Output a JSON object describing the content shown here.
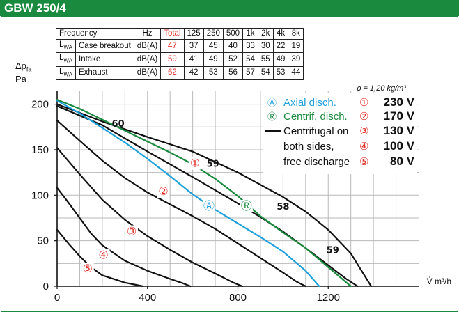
{
  "title": "GBW 250/4",
  "table": {
    "head": [
      "Frequency",
      "Hz",
      "Total",
      "125",
      "250",
      "500",
      "1k",
      "2k",
      "4k",
      "8k"
    ],
    "rows": [
      {
        "sym": "L",
        "sub": "WA",
        "label": "Case breakout",
        "unit": "dB(A)",
        "total": "47",
        "vals": [
          "37",
          "45",
          "40",
          "33",
          "30",
          "22",
          "19"
        ]
      },
      {
        "sym": "L",
        "sub": "WA",
        "label": "Intake",
        "unit": "dB(A)",
        "total": "59",
        "vals": [
          "41",
          "49",
          "52",
          "54",
          "55",
          "49",
          "39"
        ]
      },
      {
        "sym": "L",
        "sub": "WA",
        "label": "Exhaust",
        "unit": "dB(A)",
        "total": "62",
        "vals": [
          "42",
          "53",
          "56",
          "57",
          "54",
          "53",
          "44"
        ]
      }
    ]
  },
  "ylabel_sym": "Δp",
  "ylabel_sub": "fa",
  "ylabel_unit": "Pa",
  "xlabel": "V̇ m³/h",
  "rho": "ρ = 1,20 kg/m³",
  "legend": {
    "lines": [
      {
        "mark": "Ⓐ",
        "text": "Axial disch.",
        "color": "#1ea0dc"
      },
      {
        "mark": "Ⓡ",
        "text": "Centrif. disch.",
        "color": "#1a8a3e"
      },
      {
        "mark": "—",
        "text": "Centrifugal on",
        "color": "#111111"
      },
      {
        "mark": "",
        "text": "both sides,",
        "color": "#111111"
      },
      {
        "mark": "",
        "text": "free discharge",
        "color": "#111111"
      }
    ],
    "speeds": [
      {
        "mark": "①",
        "value": "230 V"
      },
      {
        "mark": "②",
        "value": "170 V"
      },
      {
        "mark": "③",
        "value": "130 V"
      },
      {
        "mark": "④",
        "value": "100 V"
      },
      {
        "mark": "⑤",
        "value": "80 V"
      }
    ]
  },
  "colors": {
    "axial": "#1ea0dc",
    "centrif": "#1a8a3e",
    "free": "#111111",
    "marker": "#e0312b",
    "frame": "#1a8a3e"
  },
  "chart_data": {
    "type": "line",
    "xlim": [
      0,
      1600
    ],
    "ylim": [
      0,
      215
    ],
    "xticks": [
      0,
      400,
      800,
      1200
    ],
    "yticks": [
      0,
      50,
      100,
      150,
      200
    ],
    "grid": true,
    "series": [
      {
        "name": "Centrifugal on both sides, free discharge",
        "color": "#111111",
        "x": [
          0,
          200,
          400,
          600,
          800,
          1000,
          1100,
          1200,
          1300,
          1340,
          1390
        ],
        "y": [
          200,
          181,
          164,
          148,
          125,
          98,
          82,
          62,
          36,
          20,
          0
        ]
      },
      {
        "name": "Centrifugal on both sides, free discharge",
        "color": "#111111",
        "x": [
          0,
          200,
          400,
          600,
          800,
          900,
          1000,
          1100,
          1200,
          1280,
          1330
        ],
        "y": [
          198,
          177,
          148,
          120,
          91,
          76,
          60,
          42,
          23,
          8,
          0
        ]
      },
      {
        "name": "Centrifugal on both sides, free discharge",
        "color": "#111111",
        "x": [
          0,
          100,
          200,
          300,
          400,
          500,
          600,
          700,
          800,
          900,
          1000,
          1060,
          1100
        ],
        "y": [
          182,
          160,
          138,
          119,
          103,
          90,
          77,
          63,
          47,
          31,
          15,
          5,
          0
        ]
      },
      {
        "name": "Centrifugal on both sides, free discharge",
        "color": "#111111",
        "x": [
          0,
          100,
          200,
          300,
          400,
          500,
          600,
          700,
          780,
          820
        ],
        "y": [
          152,
          123,
          95,
          73,
          55,
          40,
          26,
          14,
          4,
          0
        ]
      },
      {
        "name": "Centrifugal on both sides, free discharge",
        "color": "#111111",
        "x": [
          0,
          50,
          100,
          150,
          200,
          300,
          400,
          500,
          560,
          590
        ],
        "y": [
          108,
          92,
          75,
          58,
          45,
          28,
          17,
          8,
          3,
          0
        ]
      },
      {
        "name": "Centrifugal on both sides, free discharge",
        "color": "#111111",
        "x": [
          0,
          50,
          100,
          150,
          200,
          300,
          380
        ],
        "y": [
          62,
          47,
          33,
          21,
          12,
          4,
          0
        ]
      },
      {
        "name": "Axial disch.",
        "color": "#1ea0dc",
        "x": [
          0,
          100,
          200,
          300,
          400,
          500,
          600,
          700,
          800,
          900,
          1000,
          1100,
          1160
        ],
        "y": [
          204,
          190,
          174,
          158,
          140,
          121,
          101,
          84,
          69,
          54,
          38,
          17,
          0
        ]
      },
      {
        "name": "Centrif. disch.",
        "color": "#1a8a3e",
        "x": [
          0,
          100,
          200,
          300,
          400,
          500,
          600,
          700,
          800,
          900,
          1000,
          1100,
          1200,
          1300
        ],
        "y": [
          205,
          195,
          183,
          171,
          159,
          147,
          134,
          118,
          99,
          77,
          59,
          42,
          21,
          0
        ]
      }
    ],
    "annotations": [
      {
        "text": "60",
        "x": 270,
        "y": 179,
        "kind": "label"
      },
      {
        "text": "59",
        "x": 690,
        "y": 135,
        "kind": "label"
      },
      {
        "text": "58",
        "x": 1000,
        "y": 88,
        "kind": "label"
      },
      {
        "text": "59",
        "x": 1220,
        "y": 40,
        "kind": "label"
      },
      {
        "text": "①",
        "x": 610,
        "y": 135,
        "kind": "marker"
      },
      {
        "text": "②",
        "x": 470,
        "y": 104,
        "kind": "marker"
      },
      {
        "text": "③",
        "x": 330,
        "y": 60,
        "kind": "marker"
      },
      {
        "text": "④",
        "x": 205,
        "y": 34,
        "kind": "marker"
      },
      {
        "text": "⑤",
        "x": 135,
        "y": 19,
        "kind": "marker"
      },
      {
        "text": "Ⓐ",
        "x": 672,
        "y": 88,
        "kind": "marker-axial"
      },
      {
        "text": "Ⓡ",
        "x": 838,
        "y": 88,
        "kind": "marker-centrif"
      }
    ]
  }
}
